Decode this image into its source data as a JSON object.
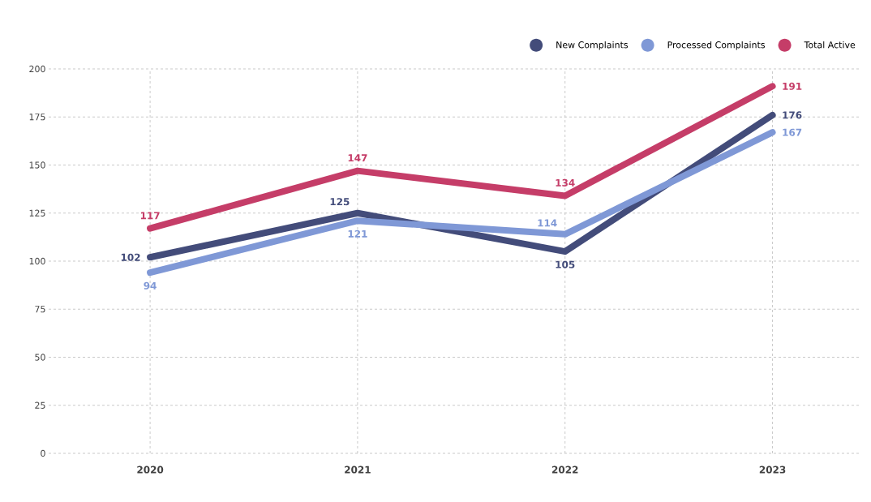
{
  "chart_data": {
    "type": "line",
    "categories": [
      "2020",
      "2021",
      "2022",
      "2023"
    ],
    "series": [
      {
        "name": "New Complaints",
        "color": "#434c7a",
        "values": [
          102,
          125,
          105,
          176
        ]
      },
      {
        "name": "Processed Complaints",
        "color": "#7f98d6",
        "values": [
          94,
          121,
          114,
          167
        ]
      },
      {
        "name": "Total Active",
        "color": "#c53d68",
        "values": [
          117,
          147,
          134,
          191
        ]
      }
    ],
    "ylim": [
      0,
      200
    ],
    "yticks": [
      0,
      25,
      50,
      75,
      100,
      125,
      150,
      175,
      200
    ],
    "grid": true,
    "legend": "top right",
    "data_labels": true,
    "marker": "none",
    "line_style": "solid"
  }
}
